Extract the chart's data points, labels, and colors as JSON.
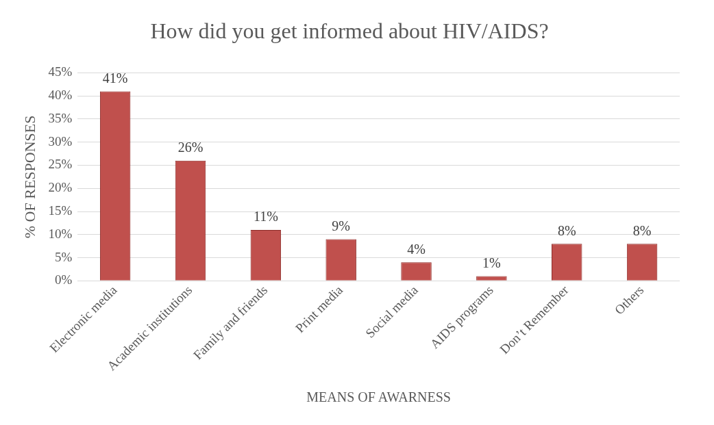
{
  "chart_data": {
    "type": "bar",
    "title": "How did you get informed about HIV/AIDS?",
    "xlabel": "MEANS OF AWARNESS",
    "ylabel": "% OF RESPONSES",
    "categories": [
      "Electronic media",
      "Academic institutions",
      "Family and friends",
      "Print media",
      "Social media",
      "AIDS programs",
      "Don’t Remember",
      "Others"
    ],
    "values": [
      41,
      26,
      11,
      9,
      4,
      1,
      8,
      8
    ],
    "value_labels": [
      "41%",
      "26%",
      "11%",
      "9%",
      "4%",
      "1%",
      "8%",
      "8%"
    ],
    "color": "#c0504d",
    "ylim": [
      0,
      45
    ],
    "yticks": [
      {
        "value": 0,
        "label": "0%"
      },
      {
        "value": 5,
        "label": "5%"
      },
      {
        "value": 10,
        "label": "10%"
      },
      {
        "value": 15,
        "label": "15%"
      },
      {
        "value": 20,
        "label": "20%"
      },
      {
        "value": 25,
        "label": "25%"
      },
      {
        "value": 30,
        "label": "30%"
      },
      {
        "value": 35,
        "label": "35%"
      },
      {
        "value": 40,
        "label": "40%"
      },
      {
        "value": 45,
        "label": "45%"
      }
    ],
    "grid": "y",
    "legend": false
  }
}
